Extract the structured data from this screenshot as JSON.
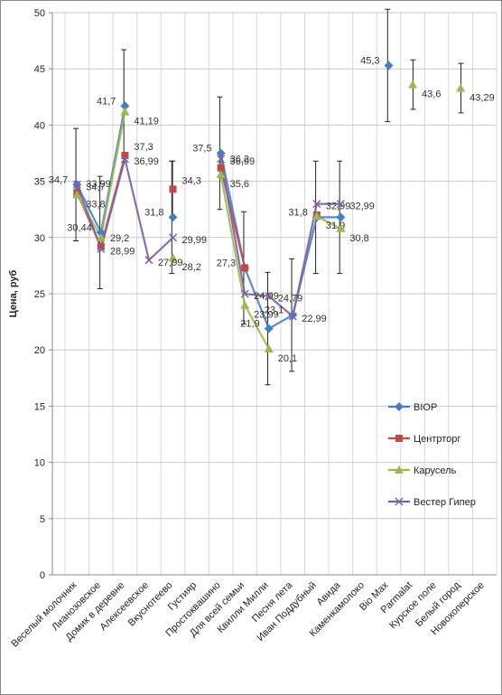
{
  "chart_data": {
    "type": "line",
    "y_label": "Цена, руб",
    "categories": [
      "Веселый молочник",
      "Лианозовское",
      "Домик в деревне",
      "Алексеевское",
      "Вкуснотеево",
      "Густияр",
      "Простоквашино",
      "Для всей семьи",
      "Квилли Милли",
      "Песня лета",
      "Иван Поддубный",
      "Авида",
      "Каменкамолоко",
      "Bio Max",
      "Parmalat",
      "Курское поле",
      "Белый город",
      "Новохоперское"
    ],
    "ylim": [
      0,
      50
    ],
    "yticks": [
      0,
      5,
      10,
      15,
      20,
      25,
      30,
      35,
      40,
      45,
      50
    ],
    "grid": true,
    "legend": "right",
    "series": [
      {
        "name": "BIOP",
        "color": "#4a7ebb",
        "marker": "diamond",
        "values": [
          34.7,
          30.44,
          41.7,
          null,
          31.8,
          null,
          37.5,
          27.3,
          21.9,
          23.1,
          31.8,
          31.8,
          null,
          45.3,
          null,
          null,
          null,
          null
        ],
        "value_labels": [
          "34,7",
          "30,44",
          "41,7",
          null,
          "31,8",
          null,
          "37,5",
          "27,3",
          "21,9",
          "23,1",
          "31,8",
          null,
          null,
          "45,3",
          null,
          null,
          null,
          null
        ],
        "errors": [
          5,
          5,
          5,
          null,
          5,
          null,
          5,
          5,
          5,
          5,
          5,
          5,
          null,
          5,
          null,
          null,
          null,
          null
        ]
      },
      {
        "name": "Центрторг",
        "color": "#be4b48",
        "marker": "square",
        "values": [
          33.99,
          29.2,
          37.3,
          null,
          34.3,
          null,
          36.2,
          27.3,
          null,
          null,
          32,
          null,
          null,
          null,
          null,
          null,
          null,
          null
        ],
        "value_labels": [
          "33,99",
          "29,2",
          "37,3",
          null,
          "34,3",
          null,
          "36,2",
          null,
          null,
          null,
          null,
          null,
          null,
          null,
          null,
          null,
          null,
          null
        ],
        "errors": [
          null,
          null,
          null,
          null,
          2.5,
          null,
          null,
          null,
          null,
          null,
          null,
          null,
          null,
          null,
          null,
          null,
          null,
          null
        ]
      },
      {
        "name": "Карусель",
        "color": "#98b954",
        "marker": "triangle",
        "values": [
          33.8,
          30,
          41.19,
          null,
          28.2,
          null,
          35.6,
          23.99,
          20.1,
          null,
          31.9,
          30.8,
          null,
          null,
          43.6,
          null,
          43.29,
          null
        ],
        "value_labels": [
          "33,8",
          null,
          "41,19",
          null,
          "28,2",
          null,
          "35,6",
          "23,99",
          "20,1",
          null,
          "31,9",
          "30,8",
          null,
          null,
          "43,6",
          null,
          "43,29",
          null
        ],
        "errors": [
          null,
          null,
          null,
          null,
          null,
          null,
          null,
          null,
          null,
          null,
          null,
          null,
          null,
          null,
          2.2,
          null,
          2.2,
          null
        ]
      },
      {
        "name": "Вестер Гипер",
        "color": "#7d60a0",
        "marker": "x",
        "values": [
          34.7,
          28.99,
          36.99,
          27.99,
          29.99,
          null,
          36.99,
          24.99,
          24.79,
          22.99,
          32.99,
          32.99,
          null,
          null,
          null,
          null,
          null,
          null
        ],
        "value_labels": [
          "34,7",
          "28,99",
          "36,99",
          "27,99",
          "29,99",
          null,
          "36,99",
          "24,99",
          "24,79",
          "22,99",
          "32,99",
          "32,99",
          null,
          null,
          null,
          null,
          null,
          null
        ],
        "errors": [
          null,
          null,
          null,
          null,
          null,
          null,
          null,
          null,
          null,
          null,
          null,
          null,
          null,
          null,
          null,
          null,
          null,
          null
        ]
      }
    ]
  }
}
